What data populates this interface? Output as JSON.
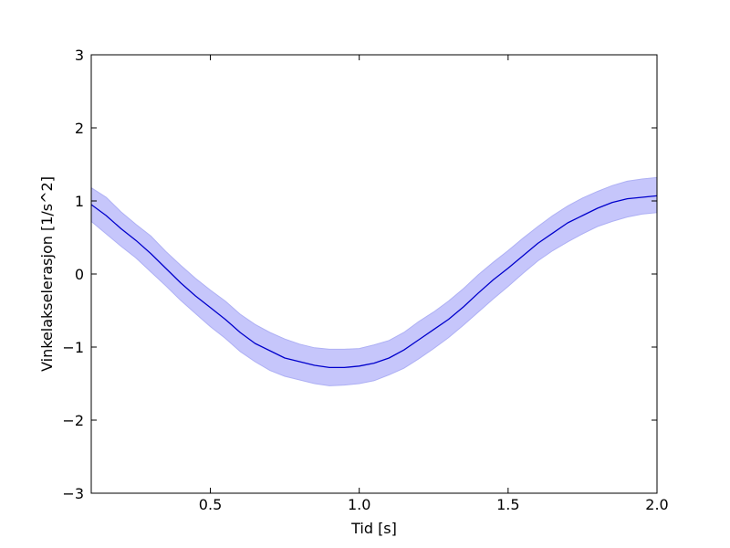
{
  "colors": {
    "line": "#0000cc",
    "band": "#c6c6fb",
    "band_edge": "#aeb0f4",
    "axes": "#000000",
    "background": "#ffffff"
  },
  "chart_data": {
    "type": "line",
    "title": "",
    "xlabel": "Tid [s]",
    "ylabel": "Vinkelakselerasjon [1/s^2]",
    "xlim": [
      0.1,
      2.0
    ],
    "ylim": [
      -3,
      3
    ],
    "grid": false,
    "x_ticks": [
      0.5,
      1.0,
      1.5,
      2.0
    ],
    "x_tick_labels": [
      "0.5",
      "1.0",
      "1.5",
      "2.0"
    ],
    "y_ticks": [
      -3,
      -2,
      -1,
      0,
      1,
      2,
      3
    ],
    "y_tick_labels": [
      "−3",
      "−2",
      "−1",
      "0",
      "1",
      "2",
      "3"
    ],
    "series": [
      {
        "x": [
          0.1,
          0.15,
          0.2,
          0.25,
          0.3,
          0.35,
          0.4,
          0.45,
          0.5,
          0.55,
          0.6,
          0.65,
          0.7,
          0.75,
          0.8,
          0.85,
          0.9,
          0.95,
          1.0,
          1.05,
          1.1,
          1.15,
          1.2,
          1.25,
          1.3,
          1.35,
          1.4,
          1.45,
          1.5,
          1.55,
          1.6,
          1.65,
          1.7,
          1.75,
          1.8,
          1.85,
          1.9,
          1.95,
          2.0
        ],
        "y": [
          0.95,
          0.8,
          0.62,
          0.46,
          0.28,
          0.08,
          -0.12,
          -0.3,
          -0.46,
          -0.62,
          -0.8,
          -0.95,
          -1.05,
          -1.15,
          -1.2,
          -1.25,
          -1.28,
          -1.28,
          -1.26,
          -1.22,
          -1.15,
          -1.04,
          -0.9,
          -0.76,
          -0.62,
          -0.45,
          -0.26,
          -0.08,
          0.08,
          0.25,
          0.42,
          0.56,
          0.7,
          0.8,
          0.9,
          0.98,
          1.03,
          1.05,
          1.07
        ],
        "lower": [
          0.72,
          0.55,
          0.38,
          0.22,
          0.03,
          -0.16,
          -0.36,
          -0.54,
          -0.72,
          -0.88,
          -1.06,
          -1.2,
          -1.32,
          -1.4,
          -1.45,
          -1.5,
          -1.53,
          -1.52,
          -1.5,
          -1.46,
          -1.38,
          -1.29,
          -1.16,
          -1.02,
          -0.87,
          -0.7,
          -0.52,
          -0.34,
          -0.17,
          0.01,
          0.18,
          0.32,
          0.44,
          0.55,
          0.65,
          0.72,
          0.78,
          0.82,
          0.84
        ],
        "upper": [
          1.18,
          1.05,
          0.85,
          0.68,
          0.52,
          0.31,
          0.12,
          -0.06,
          -0.22,
          -0.37,
          -0.55,
          -0.69,
          -0.8,
          -0.89,
          -0.96,
          -1.01,
          -1.03,
          -1.03,
          -1.02,
          -0.97,
          -0.91,
          -0.8,
          -0.65,
          -0.52,
          -0.37,
          -0.2,
          -0.01,
          0.16,
          0.32,
          0.49,
          0.65,
          0.8,
          0.93,
          1.04,
          1.13,
          1.21,
          1.27,
          1.3,
          1.32
        ]
      }
    ]
  }
}
